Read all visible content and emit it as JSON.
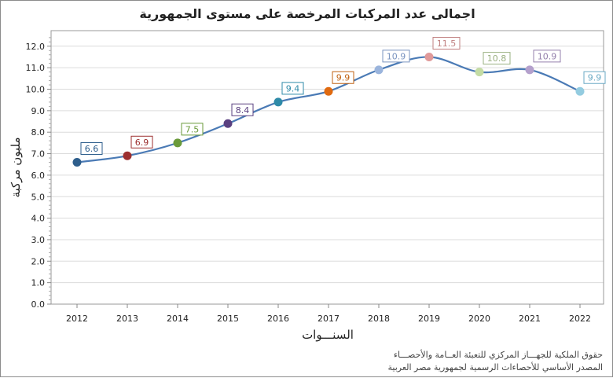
{
  "chart_data": {
    "type": "line",
    "title": "اجمالى عدد المركبات المرخصة على مستوى الجمهورية",
    "xlabel": "السنـــوات",
    "ylabel": "مليون مركبة",
    "ylim": [
      0,
      12.5
    ],
    "y_ticks": [
      "0.0",
      "1.0",
      "2.0",
      "3.0",
      "4.0",
      "5.0",
      "6.0",
      "7.0",
      "8.0",
      "9.0",
      "10.0",
      "11.0",
      "12.0"
    ],
    "grid": "horizontal",
    "smooth": true,
    "line_color": "#4a7ab5",
    "categories": [
      "2012",
      "2013",
      "2014",
      "2015",
      "2016",
      "2017",
      "2018",
      "2019",
      "2020",
      "2021",
      "2022"
    ],
    "values": [
      6.6,
      6.9,
      7.5,
      8.4,
      9.4,
      9.9,
      10.9,
      11.5,
      10.8,
      10.9,
      9.9
    ],
    "data_labels": [
      "6.6",
      "6.9",
      "7.5",
      "8.4",
      "9.4",
      "9.9",
      "10.9",
      "11.5",
      "10.8",
      "10.9",
      "9.9"
    ],
    "point_colors": [
      "#2e5e8c",
      "#9c2f2f",
      "#6a9a3a",
      "#5a4080",
      "#2e8aa8",
      "#e06a10",
      "#9ab4dc",
      "#e09a9a",
      "#c4dca4",
      "#b4a0cc",
      "#94cce0"
    ],
    "label_colors": [
      "#2e5e8c",
      "#9c2f2f",
      "#6a9a3a",
      "#5a4080",
      "#2e8aa8",
      "#c06010",
      "#7a94c0",
      "#c08080",
      "#9ab080",
      "#9480ac",
      "#6aaac4"
    ]
  },
  "footer": {
    "line1": "حقوق الملكية للجهـــاز المركزي للتعبئة العــامة والأحصـــاء",
    "line2": "المصدر الأساسي للأحصاءات الرسمية لجمهورية مصر العربية"
  }
}
